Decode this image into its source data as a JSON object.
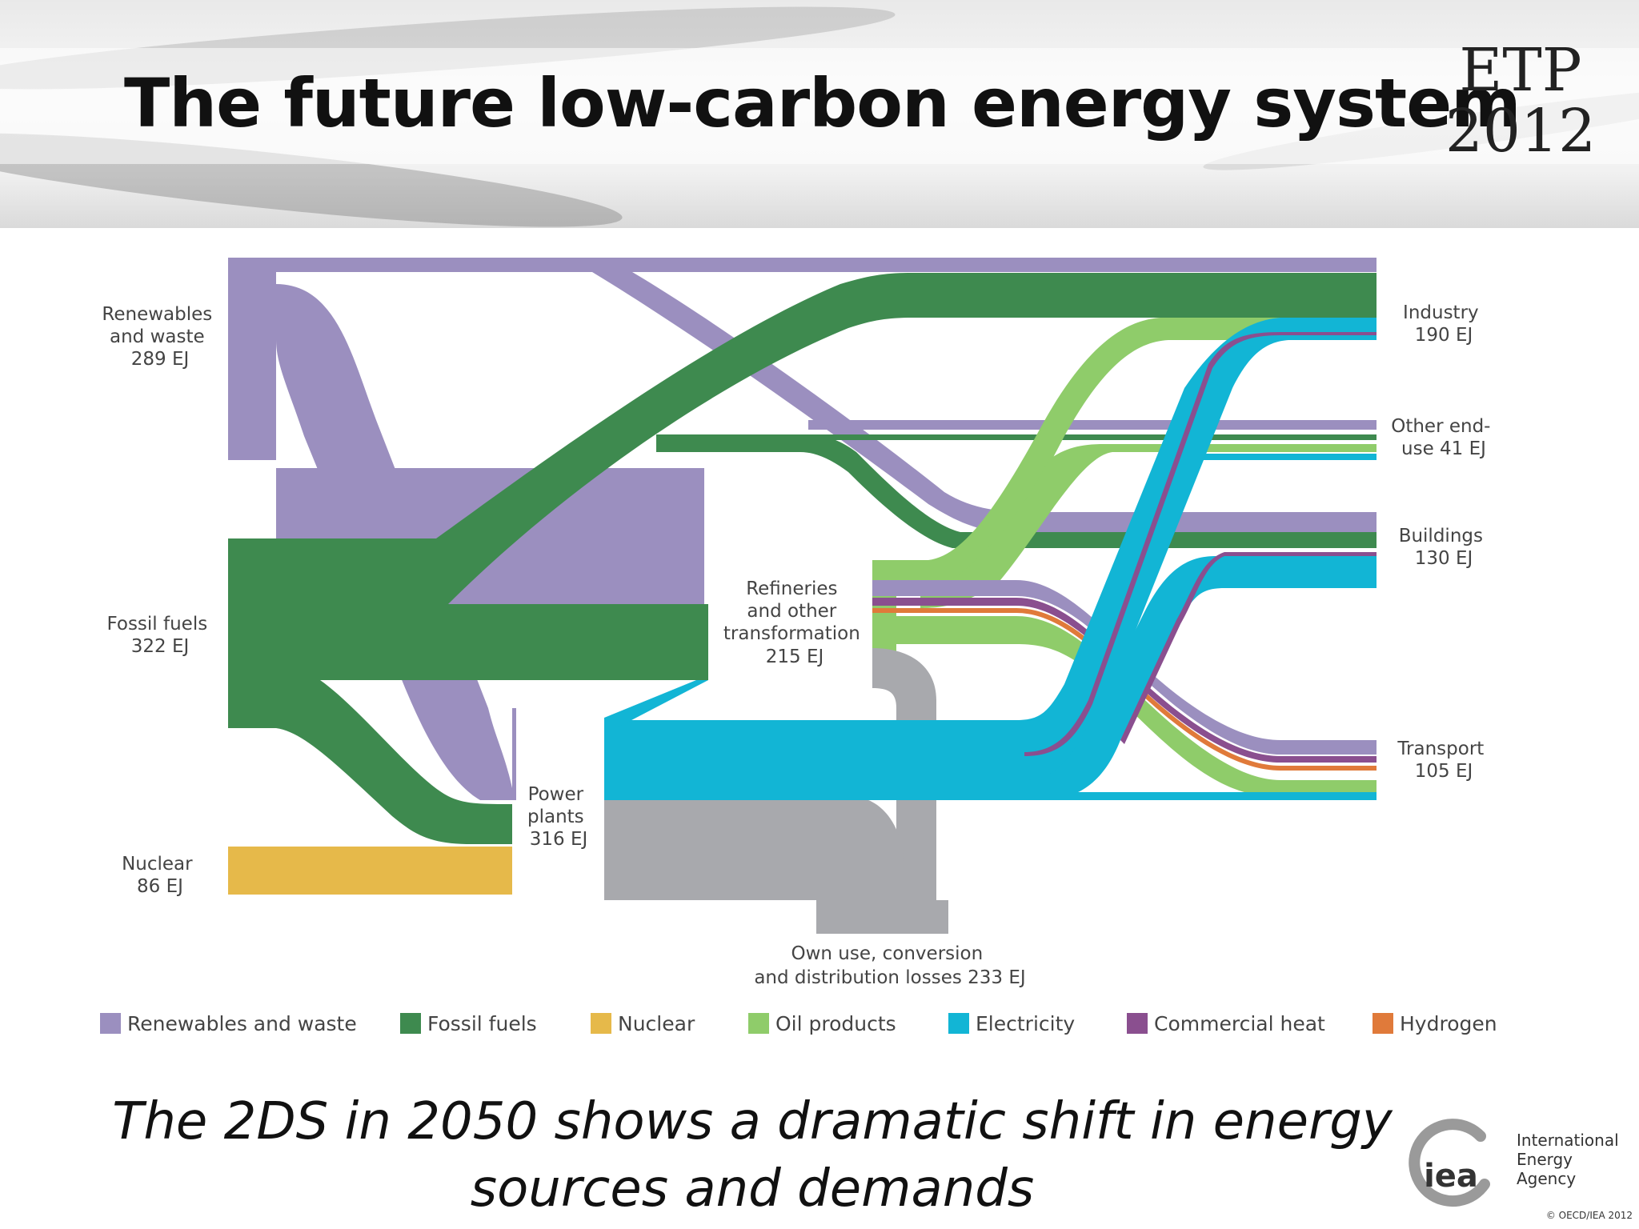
{
  "header": {
    "title": "The future low-carbon energy system",
    "badge_line1": "ETP",
    "badge_line2": "2012"
  },
  "diagram": {
    "sources": [
      {
        "name": "Renewables and waste",
        "value": "289 EJ"
      },
      {
        "name": "Fossil fuels",
        "value": "322 EJ"
      },
      {
        "name": "Nuclear",
        "value": "86 EJ"
      }
    ],
    "intermediates": [
      {
        "name": "Power plants",
        "value": "316 EJ"
      },
      {
        "name": "Refineries and other transformation",
        "value": "215 EJ"
      },
      {
        "name": "Own use, conversion and distribution losses",
        "value": "233 EJ"
      }
    ],
    "sinks": [
      {
        "name": "Industry",
        "value": "190 EJ"
      },
      {
        "name": "Other end-use",
        "value": "41 EJ"
      },
      {
        "name": "Buildings",
        "value": "130 EJ"
      },
      {
        "name": "Transport",
        "value": "105 EJ"
      }
    ],
    "labels": {
      "renewables": [
        "Renewables",
        "and waste",
        "289 EJ"
      ],
      "fossil": [
        "Fossil fuels",
        "322 EJ"
      ],
      "nuclear": [
        "Nuclear",
        "86 EJ"
      ],
      "power": [
        "Power",
        "plants",
        "316 EJ"
      ],
      "refineries": [
        "Refineries",
        "and other",
        "transformation",
        "215 EJ"
      ],
      "losses": [
        "Own use, conversion",
        "and distribution losses 233 EJ"
      ],
      "industry": [
        "Industry",
        "190 EJ"
      ],
      "other": [
        "Other end-",
        "use 41 EJ"
      ],
      "buildings": [
        "Buildings",
        "130 EJ"
      ],
      "transport": [
        "Transport",
        "105 EJ"
      ]
    },
    "colors": {
      "renewables": "#9b8fbf",
      "fossil": "#3e8a4f",
      "nuclear": "#e6b94a",
      "oil": "#8fcc6a",
      "electricity": "#12b5d5",
      "heat": "#8a4f8f",
      "hydrogen": "#e07a3a",
      "losses": "#a8a9ad"
    }
  },
  "legend": [
    {
      "label": "Renewables and waste",
      "color": "#9b8fbf"
    },
    {
      "label": "Fossil fuels",
      "color": "#3e8a4f"
    },
    {
      "label": "Nuclear",
      "color": "#e6b94a"
    },
    {
      "label": "Oil products",
      "color": "#8fcc6a"
    },
    {
      "label": "Electricity",
      "color": "#12b5d5"
    },
    {
      "label": "Commercial heat",
      "color": "#8a4f8f"
    },
    {
      "label": "Hydrogen",
      "color": "#e07a3a"
    }
  ],
  "subtitle": {
    "line1": "The 2DS in 2050 shows a dramatic shift in energy",
    "line2": "sources and demands"
  },
  "footer": {
    "logo_text": "iea",
    "org_line1": "International",
    "org_line2": "Energy Agency",
    "copyright": "© OECD/IEA 2012"
  }
}
